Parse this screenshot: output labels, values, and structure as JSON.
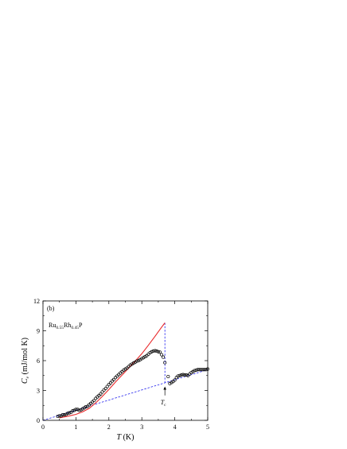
{
  "chart_data": {
    "type": "scatter",
    "panel_label": "(b)",
    "sample_label": {
      "parts": [
        {
          "t": "Ru",
          "sub": false
        },
        {
          "t": "0.55",
          "sub": true
        },
        {
          "t": "Rh",
          "sub": false
        },
        {
          "t": "0.45",
          "sub": true
        },
        {
          "t": "P",
          "sub": false
        }
      ]
    },
    "xlabel": {
      "main": "T",
      "unit": " (K)"
    },
    "ylabel": {
      "main": "C",
      "sub": "e",
      "unit": " (mJ/mol K)"
    },
    "xlim": [
      0,
      5
    ],
    "ylim": [
      0,
      12
    ],
    "xticks": [
      0,
      1,
      2,
      3,
      4,
      5
    ],
    "yticks": [
      0,
      3,
      6,
      9,
      12
    ],
    "tc_label": {
      "main": "T",
      "sub": "c"
    },
    "tc": 3.7,
    "series": [
      {
        "kind": "points",
        "color": "#000000",
        "x": [
          0.45,
          0.5,
          0.55,
          0.6,
          0.65,
          0.7,
          0.75,
          0.8,
          0.85,
          0.9,
          0.95,
          1.0,
          1.05,
          1.1,
          1.15,
          1.2,
          1.25,
          1.3,
          1.35,
          1.4,
          1.45,
          1.5,
          1.55,
          1.6,
          1.65,
          1.7,
          1.75,
          1.8,
          1.85,
          1.9,
          1.95,
          2.0,
          2.05,
          2.1,
          2.15,
          2.2,
          2.25,
          2.3,
          2.35,
          2.4,
          2.45,
          2.5,
          2.55,
          2.6,
          2.65,
          2.7,
          2.75,
          2.8,
          2.85,
          2.9,
          2.95,
          3.0,
          3.05,
          3.1,
          3.15,
          3.2,
          3.25,
          3.3,
          3.35,
          3.4,
          3.45,
          3.5,
          3.55,
          3.6,
          3.65,
          3.7,
          3.8,
          3.85,
          3.9,
          3.95,
          4.0,
          4.05,
          4.1,
          4.15,
          4.2,
          4.25,
          4.3,
          4.35,
          4.4,
          4.45,
          4.5,
          4.55,
          4.6,
          4.65,
          4.7,
          4.75,
          4.8,
          4.85,
          4.9,
          4.95,
          5.0
        ],
        "y": [
          0.4,
          0.45,
          0.45,
          0.55,
          0.55,
          0.6,
          0.7,
          0.75,
          0.8,
          0.95,
          1.0,
          1.1,
          1.1,
          1.0,
          1.05,
          1.15,
          1.25,
          1.35,
          1.4,
          1.55,
          1.7,
          1.85,
          2.0,
          2.2,
          2.35,
          2.5,
          2.65,
          2.85,
          3.05,
          3.2,
          3.4,
          3.6,
          3.75,
          3.95,
          4.1,
          4.3,
          4.45,
          4.6,
          4.75,
          4.9,
          5.05,
          5.15,
          5.25,
          5.4,
          5.55,
          5.65,
          5.75,
          5.85,
          5.95,
          6.0,
          6.1,
          6.2,
          6.3,
          6.4,
          6.5,
          6.65,
          6.8,
          6.9,
          6.95,
          7.0,
          6.95,
          6.9,
          6.85,
          6.6,
          6.35,
          5.8,
          4.4,
          3.7,
          3.8,
          3.9,
          4.05,
          4.3,
          4.45,
          4.5,
          4.55,
          4.6,
          4.55,
          4.55,
          4.5,
          4.65,
          4.8,
          4.9,
          5.0,
          5.05,
          5.1,
          5.1,
          5.1,
          5.1,
          5.1,
          5.1,
          5.15
        ]
      },
      {
        "kind": "line",
        "color": "#e8282a",
        "x": [
          0.5,
          0.8,
          1.0,
          1.2,
          1.4,
          1.6,
          1.8,
          2.0,
          2.2,
          2.4,
          2.6,
          2.8,
          3.0,
          3.2,
          3.4,
          3.6,
          3.7
        ],
        "y": [
          0.25,
          0.45,
          0.6,
          0.85,
          1.2,
          1.75,
          2.4,
          3.1,
          3.85,
          4.55,
          5.25,
          5.95,
          6.7,
          7.55,
          8.45,
          9.35,
          9.8
        ]
      },
      {
        "kind": "dashed",
        "color": "#2222ee",
        "x": [
          0.0,
          5.0
        ],
        "y": [
          0.0,
          5.1
        ]
      },
      {
        "kind": "dashed",
        "color": "#2222ee",
        "x": [
          3.7,
          3.7
        ],
        "y": [
          9.8,
          3.77
        ]
      }
    ]
  }
}
